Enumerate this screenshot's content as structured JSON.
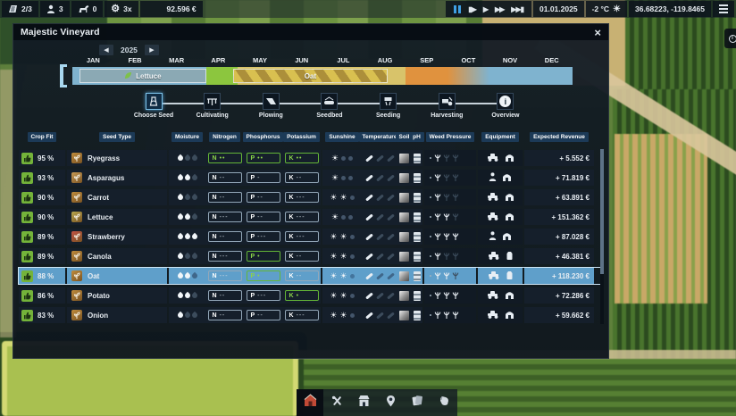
{
  "topbar": {
    "missions": "2/3",
    "workers": "3",
    "animals": "0",
    "timescale": "3x",
    "money": "92.596 €",
    "playback_icons": [
      "pause-icon",
      "step-play-icon",
      "play-icon",
      "fast-forward-icon",
      "skip-forward-icon"
    ],
    "date": "01.01.2025",
    "temperature": "-2 °C",
    "coordinates": "36.68223, -119.8465"
  },
  "panel": {
    "title": "Majestic Vineyard",
    "close_label": "×",
    "year": "2025",
    "months": [
      "JAN",
      "FEB",
      "MAR",
      "APR",
      "MAY",
      "JUN",
      "JUL",
      "AUG",
      "SEP",
      "OCT",
      "NOV",
      "DEC"
    ],
    "calendar": {
      "palette": {
        "winter": "#7fb3cf",
        "planting_window": "#8cc63e",
        "growing": "#d8c36a",
        "autumn": "#e0923e"
      },
      "segments": [
        {
          "from_month": 0.0,
          "to_month": 3.21,
          "type": "winter"
        },
        {
          "from_month": 3.21,
          "to_month": 3.96,
          "type": "planting_window"
        },
        {
          "from_month": 3.96,
          "to_month": 8.0,
          "type": "growing"
        },
        {
          "from_month": 8.0,
          "to_month": 9.0,
          "type": "autumn"
        },
        {
          "from_month": 9.0,
          "to_month": 10.0,
          "type": "fade"
        },
        {
          "from_month": 10.0,
          "to_month": 12.0,
          "type": "winter"
        }
      ],
      "crops": [
        {
          "label": "Lettuce",
          "from_month": 0.17,
          "to_month": 3.21,
          "style": "planned",
          "icon": "leaf-icon"
        },
        {
          "label": "Oat",
          "from_month": 3.86,
          "to_month": 7.56,
          "style": "striped",
          "icon": null
        }
      ],
      "now_marker_month": 0
    },
    "tabs": [
      {
        "label": "Choose Seed",
        "icon": "seed-bag-icon",
        "selected": true
      },
      {
        "label": "Cultivating",
        "icon": "cultivator-icon",
        "selected": false
      },
      {
        "label": "Plowing",
        "icon": "plow-icon",
        "selected": false
      },
      {
        "label": "Seedbed",
        "icon": "roller-icon",
        "selected": false
      },
      {
        "label": "Seeding",
        "icon": "seeder-icon",
        "selected": false
      },
      {
        "label": "Harvesting",
        "icon": "harvester-icon",
        "selected": false
      },
      {
        "label": "Overview",
        "icon": "info-icon",
        "selected": false
      }
    ],
    "columns": [
      "Crop Fit",
      "Seed Type",
      "Moisture",
      "Nitrogen",
      "Phosphorus",
      "Potassium",
      "Sunshine",
      "Temperature",
      "Soil",
      "pH",
      "Weed Pressure",
      "Equipment",
      "Expected Revenue"
    ],
    "rows": [
      {
        "fit": "95 %",
        "name": "Ryegrass",
        "seed_color": "#c08c3c",
        "moisture": 1,
        "n": "••",
        "n_good": true,
        "p": "••",
        "p_good": true,
        "k": "••",
        "k_good": true,
        "sun": 1,
        "temp": 1,
        "weed": 1,
        "equipment": [
          "tractor-icon",
          "barn-icon"
        ],
        "revenue": "+ 5.552 €",
        "selected": false
      },
      {
        "fit": "93 %",
        "name": "Asparagus",
        "seed_color": "#c99b55",
        "moisture": 2,
        "n": "--",
        "n_good": false,
        "p": "-",
        "p_good": false,
        "k": "--",
        "k_good": false,
        "sun": 1,
        "temp": 1,
        "weed": 1,
        "equipment": [
          "person-icon",
          "barn-icon"
        ],
        "revenue": "+ 71.819 €",
        "selected": false
      },
      {
        "fit": "90 %",
        "name": "Carrot",
        "seed_color": "#c08c3c",
        "moisture": 1,
        "n": "--",
        "n_good": false,
        "p": "--",
        "p_good": false,
        "k": "---",
        "k_good": false,
        "sun": 2,
        "temp": 1,
        "weed": 1,
        "equipment": [
          "tractor-icon",
          "barn-icon"
        ],
        "revenue": "+ 63.891 €",
        "selected": false
      },
      {
        "fit": "90 %",
        "name": "Lettuce",
        "seed_color": "#b8a84e",
        "moisture": 2,
        "n": "---",
        "n_good": false,
        "p": "--",
        "p_good": false,
        "k": "---",
        "k_good": false,
        "sun": 1,
        "temp": 1,
        "weed": 2,
        "equipment": [
          "tractor-icon",
          "barn-icon"
        ],
        "revenue": "+ 151.362 €",
        "selected": false
      },
      {
        "fit": "89 %",
        "name": "Strawberry",
        "seed_color": "#c25244",
        "moisture": 3,
        "n": "--",
        "n_good": false,
        "p": "---",
        "p_good": false,
        "k": "---",
        "k_good": false,
        "sun": 2,
        "temp": 1,
        "weed": 3,
        "equipment": [
          "person-icon",
          "barn-icon"
        ],
        "revenue": "+ 87.028 €",
        "selected": false
      },
      {
        "fit": "89 %",
        "name": "Canola",
        "seed_color": "#c08c3c",
        "moisture": 1,
        "n": "---",
        "n_good": false,
        "p": "•",
        "p_good": true,
        "k": "--",
        "k_good": false,
        "sun": 2,
        "temp": 1,
        "weed": 1,
        "equipment": [
          "tractor-icon",
          "sack-icon"
        ],
        "revenue": "+ 46.381 €",
        "selected": false
      },
      {
        "fit": "88 %",
        "name": "Oat",
        "seed_color": "#c08c3c",
        "moisture": 2,
        "n": "---",
        "n_good": false,
        "p": "•",
        "p_good": true,
        "k": "--",
        "k_good": false,
        "sun": 2,
        "temp": 1,
        "weed": 2,
        "equipment": [
          "tractor-icon",
          "sack-icon"
        ],
        "revenue": "+ 118.230 €",
        "selected": true
      },
      {
        "fit": "86 %",
        "name": "Potato",
        "seed_color": "#c08c3c",
        "moisture": 2,
        "n": "--",
        "n_good": false,
        "p": "---",
        "p_good": false,
        "k": "•",
        "k_good": true,
        "sun": 2,
        "temp": 1,
        "weed": 3,
        "equipment": [
          "tractor-icon",
          "barn-icon"
        ],
        "revenue": "+ 72.286 €",
        "selected": false
      },
      {
        "fit": "83 %",
        "name": "Onion",
        "seed_color": "#c08c3c",
        "moisture": 1,
        "n": "--",
        "n_good": false,
        "p": "--",
        "p_good": false,
        "k": "---",
        "k_good": false,
        "sun": 2,
        "temp": 1,
        "weed": 3,
        "equipment": [
          "tractor-icon",
          "barn-icon"
        ],
        "revenue": "+ 59.662 €",
        "selected": false
      }
    ]
  },
  "toolbar": {
    "items": [
      {
        "name": "construction-barn",
        "icon": "barn-red-icon",
        "selected": true
      },
      {
        "name": "workshop",
        "icon": "tools-icon",
        "selected": false
      },
      {
        "name": "shop",
        "icon": "shop-icon",
        "selected": false
      },
      {
        "name": "map",
        "icon": "map-pin-icon",
        "selected": false
      },
      {
        "name": "contracts",
        "icon": "documents-icon",
        "selected": false
      },
      {
        "name": "hand-tools",
        "icon": "glove-icon",
        "selected": false
      }
    ]
  }
}
